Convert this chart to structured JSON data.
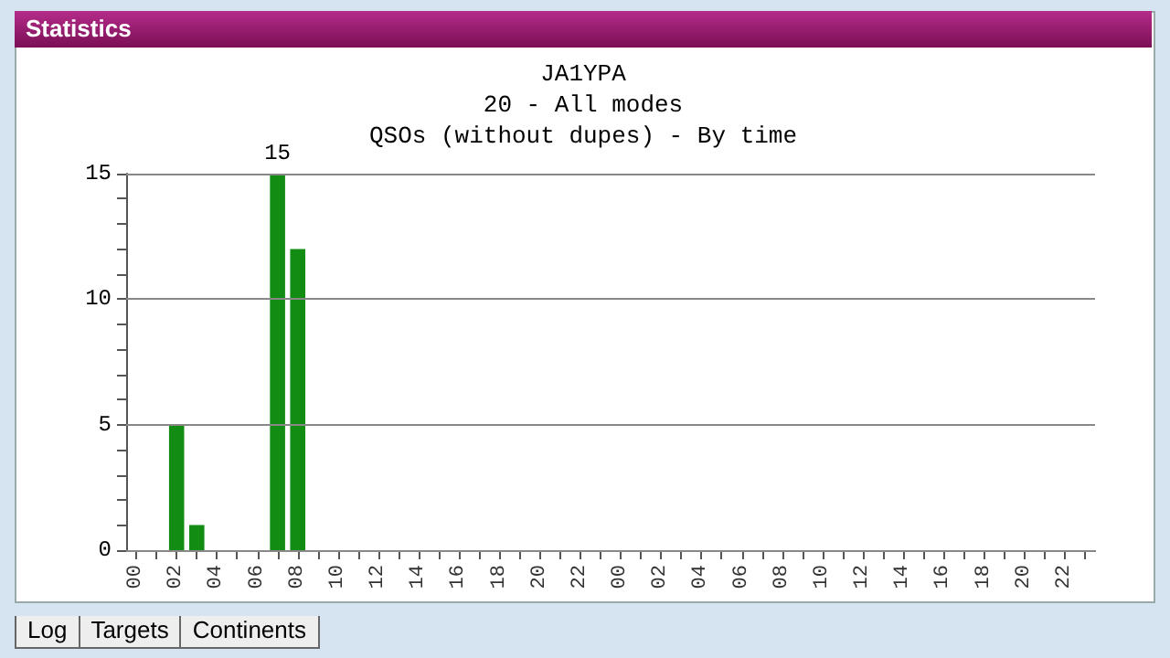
{
  "chart_data": {
    "type": "bar",
    "title": "JA1YPA",
    "subtitle": "20 - All modes\nQSOs (without dupes) - By time",
    "annotations": [
      "Statistics",
      "Log",
      "Targets",
      "Continents"
    ],
    "categories": [
      "00",
      null,
      "02",
      null,
      "04",
      null,
      "06",
      null,
      "08",
      null,
      "10",
      null,
      "12",
      null,
      "14",
      null,
      "16",
      null,
      "18",
      null,
      "20",
      null,
      "22",
      null,
      "00",
      null,
      "02",
      null,
      "04",
      null,
      "06",
      null,
      "08",
      null,
      "10",
      null,
      "12",
      null,
      "14",
      null,
      "16",
      null,
      "18",
      null,
      "20",
      null,
      "22",
      null
    ],
    "values": [
      0,
      0,
      5,
      1,
      0,
      0,
      0,
      15,
      12,
      0,
      0,
      0,
      0,
      0,
      0,
      0,
      0,
      0,
      0,
      0,
      0,
      0,
      0,
      0,
      0,
      0,
      0,
      0,
      0,
      0,
      0,
      0,
      0,
      0,
      0,
      0,
      0,
      0,
      0,
      0,
      0,
      0,
      0,
      0,
      0,
      0,
      0,
      0
    ],
    "value_labels": [
      null,
      null,
      null,
      null,
      null,
      null,
      null,
      "15",
      null,
      null,
      null,
      null,
      null,
      null,
      null,
      null,
      null,
      null,
      null,
      null,
      null,
      null,
      null,
      null,
      null,
      null,
      null,
      null,
      null,
      null,
      null,
      null,
      null,
      null,
      null,
      null,
      null,
      null,
      null,
      null,
      null,
      null,
      null,
      null,
      null,
      null,
      null,
      null
    ],
    "color": "#128c12",
    "ylim": [
      0,
      15
    ],
    "yticks": [
      0,
      {
        "value": 1,
        "label": null
      },
      {
        "value": 2,
        "label": null
      },
      {
        "value": 3,
        "label": null
      },
      {
        "value": 4,
        "label": null
      },
      5,
      {
        "value": 6,
        "label": null
      },
      {
        "value": 7,
        "label": null
      },
      {
        "value": 8,
        "label": null
      },
      {
        "value": 9,
        "label": null
      },
      10,
      {
        "value": 11,
        "label": null
      },
      {
        "value": 12,
        "label": null
      },
      {
        "value": 13,
        "label": null
      },
      {
        "value": 14,
        "label": null
      },
      15
    ],
    "grid": "y"
  }
}
